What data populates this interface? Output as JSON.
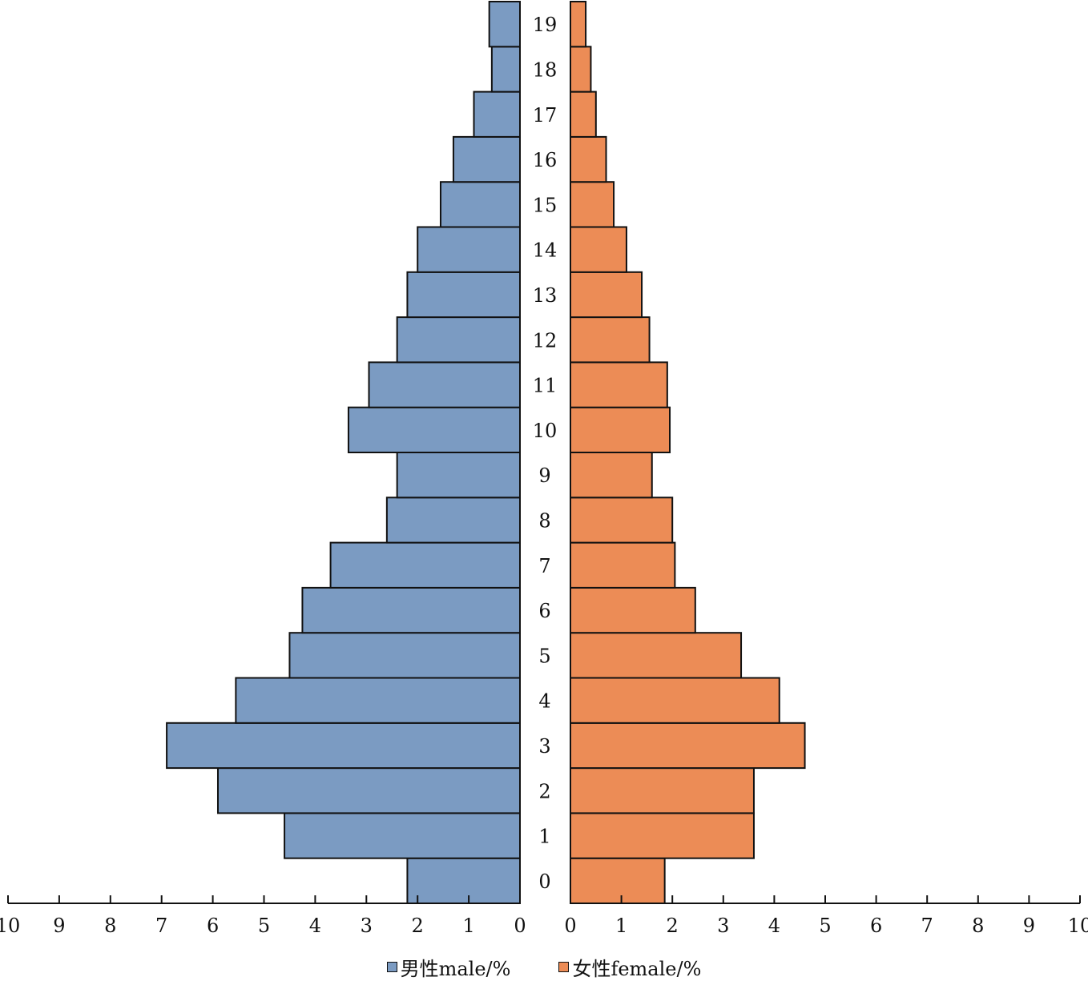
{
  "chart_data": {
    "type": "bar",
    "orientation": "horizontal",
    "layout": "population-pyramid",
    "categories": [
      "0",
      "1",
      "2",
      "3",
      "4",
      "5",
      "6",
      "7",
      "8",
      "9",
      "10",
      "11",
      "12",
      "13",
      "14",
      "15",
      "16",
      "17",
      "18",
      "19"
    ],
    "series": [
      {
        "name": "男性male/%",
        "side": "left",
        "color": "#7b9bc2",
        "values": [
          2.2,
          4.6,
          5.9,
          6.9,
          5.55,
          4.5,
          4.25,
          3.7,
          2.6,
          2.4,
          3.35,
          2.95,
          2.4,
          2.2,
          2.0,
          1.55,
          1.3,
          0.9,
          0.55,
          0.6
        ]
      },
      {
        "name": "女性female/%",
        "side": "right",
        "color": "#ec8c56",
        "values": [
          1.85,
          3.6,
          3.6,
          4.6,
          4.1,
          3.35,
          2.45,
          2.05,
          2.0,
          1.6,
          1.95,
          1.9,
          1.55,
          1.4,
          1.1,
          0.85,
          0.7,
          0.5,
          0.4,
          0.3
        ]
      }
    ],
    "x_ticks_left": [
      "10",
      "9",
      "8",
      "7",
      "6",
      "5",
      "4",
      "3",
      "2",
      "1",
      "0"
    ],
    "x_ticks_right": [
      "0",
      "1",
      "2",
      "3",
      "4",
      "5",
      "6",
      "7",
      "8",
      "9",
      "10"
    ],
    "xlim": [
      0,
      10
    ],
    "title": "",
    "xlabel": "",
    "ylabel": "",
    "grid": false,
    "legend_position": "bottom"
  },
  "legend": {
    "male_label": "男性male/%",
    "female_label": "女性female/%"
  }
}
